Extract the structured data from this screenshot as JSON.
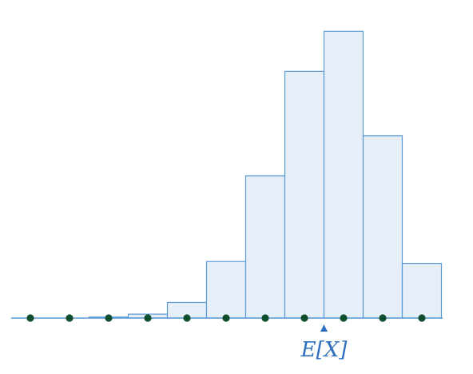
{
  "chart_data": {
    "type": "bar",
    "title": "",
    "xlabel": "",
    "ylabel": "",
    "grid": false,
    "legend": "none",
    "x": [
      0,
      1,
      2,
      3,
      4,
      5,
      6,
      7,
      8,
      9,
      10
    ],
    "values": [
      0.0,
      0.0,
      0.001,
      0.004,
      0.016,
      0.058,
      0.146,
      0.253,
      0.294,
      0.187,
      0.056
    ],
    "ylim": [
      0,
      0.3
    ],
    "expected_value": 7.5,
    "expected_label": "E[X]",
    "colors": {
      "bar_fill": "#e6eef8",
      "bar_stroke": "#5a9bd5",
      "dot": "#0f4f2e",
      "marker": "#2f6fc0"
    }
  }
}
